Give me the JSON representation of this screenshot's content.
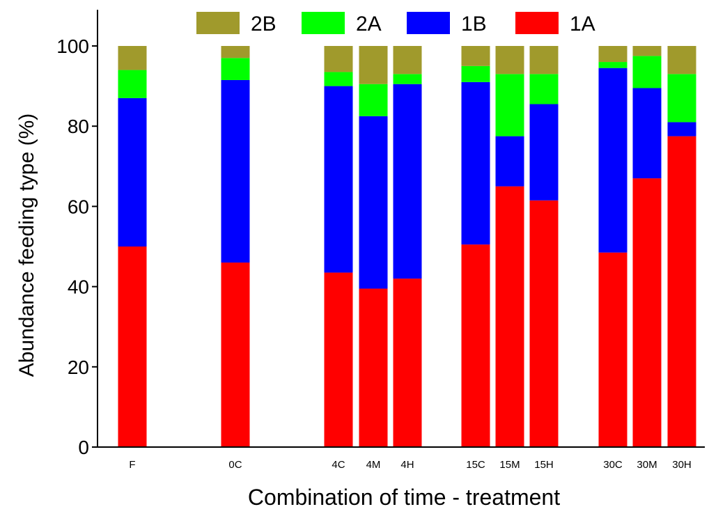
{
  "chart_data": {
    "type": "bar",
    "stacked": true,
    "title": "",
    "xlabel": "Combination of time - treatment",
    "ylabel": "Abundance feeding type (%)",
    "ylim": [
      0,
      100
    ],
    "yticks": [
      0,
      20,
      40,
      60,
      80,
      100
    ],
    "grid": false,
    "legend_position": "top",
    "categories": [
      "F",
      "0C",
      "4C",
      "4M",
      "4H",
      "15C",
      "15M",
      "15H",
      "30C",
      "30M",
      "30H"
    ],
    "groups": [
      [
        "F"
      ],
      [
        "0C"
      ],
      [
        "4C",
        "4M",
        "4H"
      ],
      [
        "15C",
        "15M",
        "15H"
      ],
      [
        "30C",
        "30M",
        "30H"
      ]
    ],
    "series": [
      {
        "name": "1A",
        "color": "#ff0000",
        "values": [
          50,
          46,
          43.5,
          39.5,
          42,
          50.5,
          65,
          61.5,
          48.5,
          67,
          77.5
        ]
      },
      {
        "name": "1B",
        "color": "#0000ff",
        "values": [
          37,
          45.5,
          46.5,
          43,
          48.5,
          40.5,
          12.5,
          24,
          46,
          22.5,
          3.5
        ]
      },
      {
        "name": "2A",
        "color": "#00ff00",
        "values": [
          7,
          5.5,
          3.5,
          8,
          2.5,
          4,
          15.5,
          7.5,
          1.5,
          8,
          12
        ]
      },
      {
        "name": "2B",
        "color": "#a09a2c",
        "values": [
          6,
          3,
          6.5,
          9.5,
          7,
          5,
          7,
          7,
          4,
          2.5,
          7
        ]
      }
    ],
    "legend_order": [
      "2B",
      "2A",
      "1B",
      "1A"
    ]
  }
}
